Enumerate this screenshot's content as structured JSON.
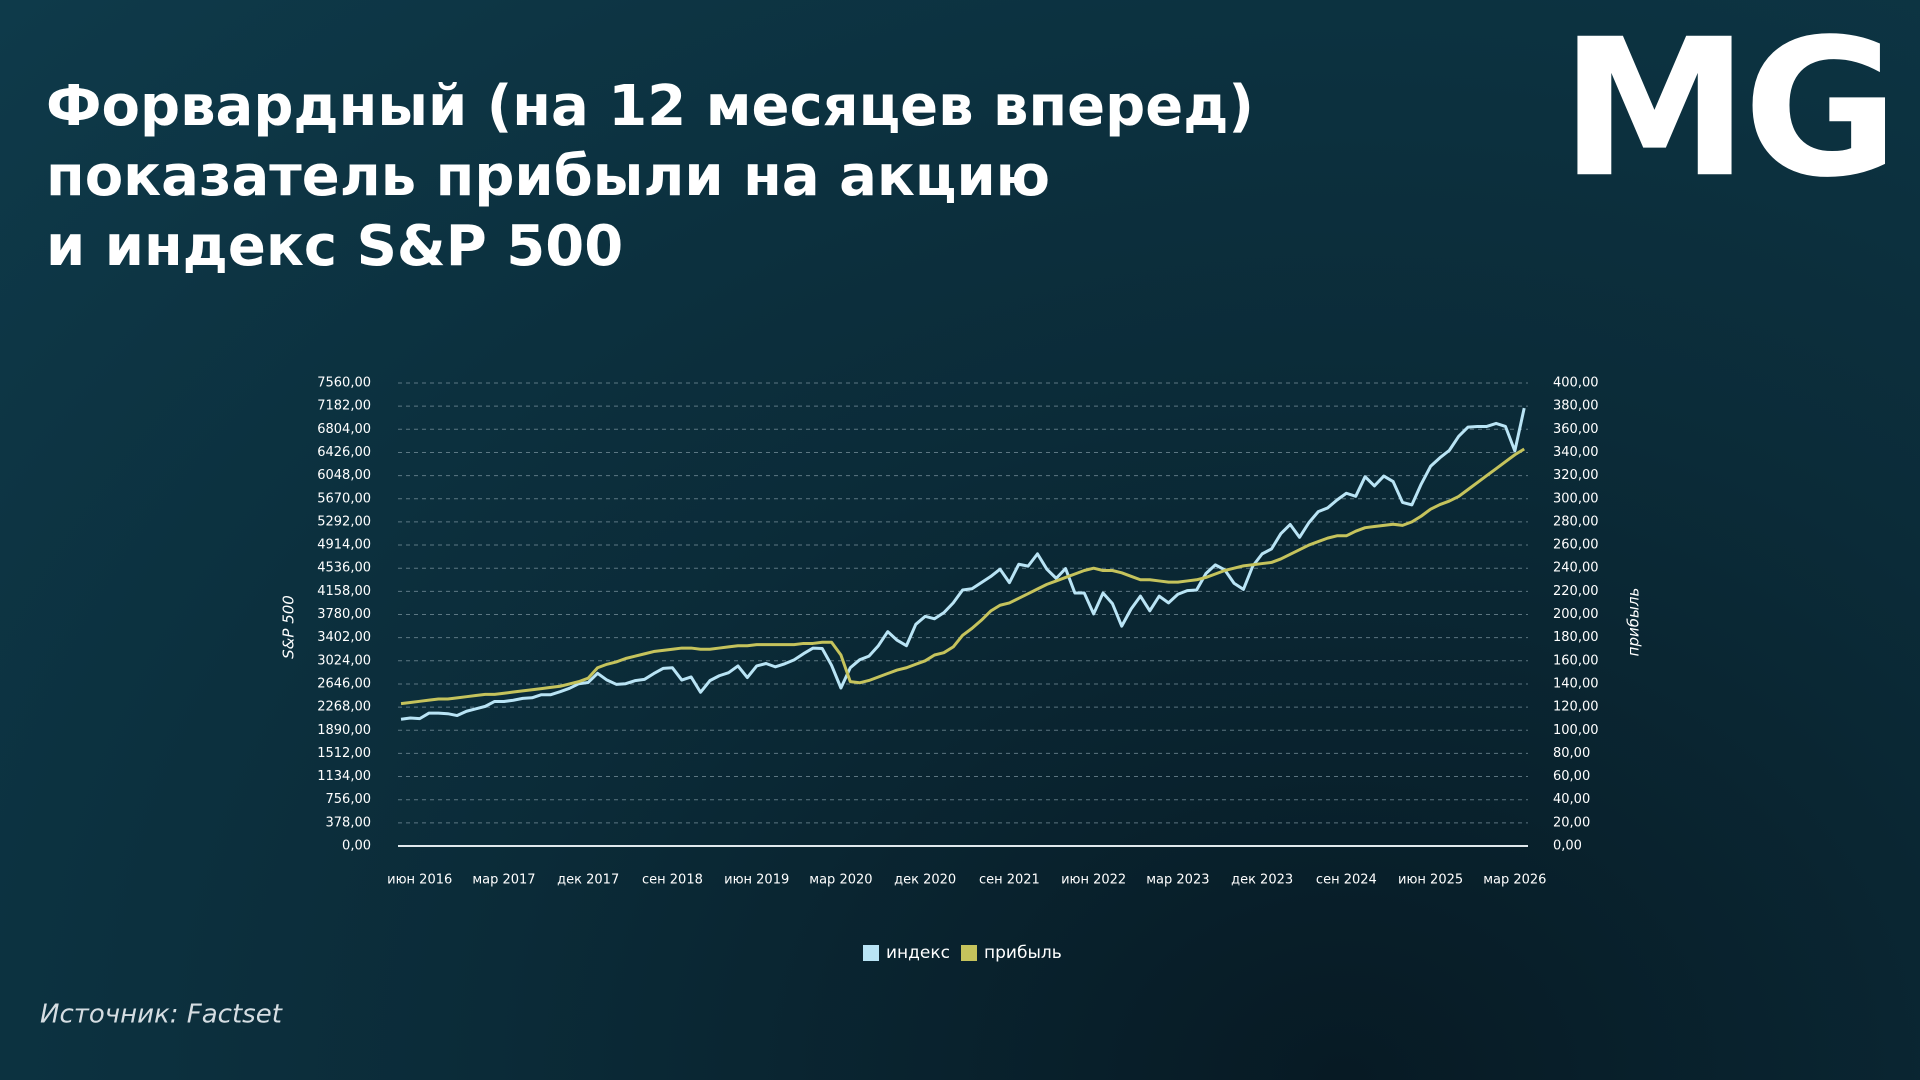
{
  "header": {
    "title": [
      "Форвардный (на 12 месяцев вперед)",
      "показатель прибыли на акцию",
      "и индекс S&P 500"
    ],
    "logo": "MG"
  },
  "source": "Источник:  Factset",
  "chart_data": {
    "type": "line",
    "categories": [
      null,
      null,
      "июн 2016",
      null,
      null,
      null,
      null,
      null,
      null,
      null,
      null,
      "мар 2017",
      null,
      null,
      null,
      null,
      null,
      null,
      null,
      null,
      "дек 2017",
      null,
      null,
      null,
      null,
      null,
      null,
      null,
      null,
      "сен 2018",
      null,
      null,
      null,
      null,
      null,
      null,
      null,
      null,
      "июн 2019",
      null,
      null,
      null,
      null,
      null,
      null,
      null,
      null,
      "мар 2020",
      null,
      null,
      null,
      null,
      null,
      null,
      null,
      null,
      "дек 2020",
      null,
      null,
      null,
      null,
      null,
      null,
      null,
      null,
      "сен 2021",
      null,
      null,
      null,
      null,
      null,
      null,
      null,
      null,
      "июн 2022",
      null,
      null,
      null,
      null,
      null,
      null,
      null,
      null,
      "мар 2023",
      null,
      null,
      null,
      null,
      null,
      null,
      null,
      null,
      "дек 2023",
      null,
      null,
      null,
      null,
      null,
      null,
      null,
      null,
      "сен 2024",
      null,
      null,
      null,
      null,
      null,
      null,
      null,
      null,
      "июн 2025",
      null,
      null,
      null,
      null,
      null,
      null,
      null,
      null,
      "мар 2026",
      null
    ],
    "series": [
      {
        "name": "индекс",
        "color": "#b9e4f5",
        "axis": "y",
        "values": [
          2070,
          2090,
          2080,
          2170,
          2170,
          2160,
          2130,
          2200,
          2240,
          2280,
          2360,
          2360,
          2380,
          2410,
          2420,
          2470,
          2470,
          2520,
          2575,
          2650,
          2670,
          2820,
          2710,
          2640,
          2650,
          2700,
          2720,
          2815,
          2900,
          2910,
          2710,
          2760,
          2510,
          2700,
          2780,
          2830,
          2940,
          2750,
          2940,
          2980,
          2925,
          2975,
          3040,
          3140,
          3230,
          3225,
          2950,
          2580,
          2910,
          3040,
          3100,
          3270,
          3500,
          3360,
          3270,
          3620,
          3750,
          3710,
          3810,
          3970,
          4180,
          4200,
          4300,
          4400,
          4520,
          4300,
          4600,
          4570,
          4770,
          4520,
          4370,
          4530,
          4130,
          4130,
          3790,
          4130,
          3960,
          3590,
          3870,
          4080,
          3840,
          4080,
          3970,
          4110,
          4170,
          4180,
          4450,
          4590,
          4510,
          4290,
          4190,
          4570,
          4770,
          4850,
          5100,
          5250,
          5040,
          5280,
          5460,
          5520,
          5650,
          5760,
          5710,
          6030,
          5880,
          6040,
          5950,
          5610,
          5570,
          5910,
          6200,
          6340,
          6460,
          6690,
          6840,
          6850,
          6850,
          6900,
          6850,
          6450,
          7150
        ]
      },
      {
        "name": "прибыль",
        "color": "#c5c35c",
        "axis": "y2",
        "values": [
          123,
          124,
          125,
          126,
          127,
          127,
          128,
          129,
          130,
          131,
          131,
          132,
          133,
          134,
          135,
          136,
          137,
          138,
          140,
          142,
          145,
          154,
          157,
          159,
          162,
          164,
          166,
          168,
          169,
          170,
          171,
          171,
          170,
          170,
          171,
          172,
          173,
          173,
          174,
          174,
          174,
          174,
          174,
          175,
          175,
          176,
          176,
          165,
          142,
          141,
          143,
          146,
          149,
          152,
          154,
          157,
          160,
          165,
          167,
          172,
          182,
          188,
          195,
          203,
          208,
          210,
          214,
          218,
          222,
          226,
          229,
          232,
          235,
          238,
          240,
          238,
          238,
          236,
          233,
          230,
          230,
          229,
          228,
          228,
          229,
          230,
          232,
          235,
          238,
          240,
          242,
          243,
          244,
          245,
          248,
          252,
          256,
          260,
          263,
          266,
          268,
          268,
          272,
          275,
          276,
          277,
          278,
          277,
          280,
          285,
          291,
          295,
          298,
          302,
          308,
          314,
          320,
          326,
          332,
          338,
          343
        ]
      }
    ],
    "ylabel": "S&P 500",
    "y2label": "прибыль",
    "ylim": [
      0,
      7560
    ],
    "yticks": [
      {
        "value": 0,
        "label": "0,00"
      },
      {
        "value": 378,
        "label": "378,00"
      },
      {
        "value": 756,
        "label": "756,00"
      },
      {
        "value": 1134,
        "label": "1134,00"
      },
      {
        "value": 1512,
        "label": "1512,00"
      },
      {
        "value": 1890,
        "label": "1890,00"
      },
      {
        "value": 2268,
        "label": "2268,00"
      },
      {
        "value": 2646,
        "label": "2646,00"
      },
      {
        "value": 3024,
        "label": "3024,00"
      },
      {
        "value": 3402,
        "label": "3402,00"
      },
      {
        "value": 3780,
        "label": "3780,00"
      },
      {
        "value": 4158,
        "label": "4158,00"
      },
      {
        "value": 4536,
        "label": "4536,00"
      },
      {
        "value": 4914,
        "label": "4914,00"
      },
      {
        "value": 5292,
        "label": "5292,00"
      },
      {
        "value": 5670,
        "label": "5670,00"
      },
      {
        "value": 6048,
        "label": "6048,00"
      },
      {
        "value": 6426,
        "label": "6426,00"
      },
      {
        "value": 6804,
        "label": "6804,00"
      },
      {
        "value": 7182,
        "label": "7182,00"
      },
      {
        "value": 7560,
        "label": "7560,00"
      }
    ],
    "y2lim": [
      0,
      400
    ],
    "y2ticks": [
      {
        "value": 0,
        "label": "0,00"
      },
      {
        "value": 20,
        "label": "20,00"
      },
      {
        "value": 40,
        "label": "40,00"
      },
      {
        "value": 60,
        "label": "60,00"
      },
      {
        "value": 80,
        "label": "80,00"
      },
      {
        "value": 100,
        "label": "100,00"
      },
      {
        "value": 120,
        "label": "120,00"
      },
      {
        "value": 140,
        "label": "140,00"
      },
      {
        "value": 160,
        "label": "160,00"
      },
      {
        "value": 180,
        "label": "180,00"
      },
      {
        "value": 200,
        "label": "200,00"
      },
      {
        "value": 220,
        "label": "220,00"
      },
      {
        "value": 240,
        "label": "240,00"
      },
      {
        "value": 260,
        "label": "260,00"
      },
      {
        "value": 280,
        "label": "280,00"
      },
      {
        "value": 300,
        "label": "300,00"
      },
      {
        "value": 320,
        "label": "320,00"
      },
      {
        "value": 340,
        "label": "340,00"
      },
      {
        "value": 360,
        "label": "360,00"
      },
      {
        "value": 380,
        "label": "380,00"
      },
      {
        "value": 400,
        "label": "400,00"
      }
    ],
    "grid": true,
    "legend": "bottom"
  }
}
